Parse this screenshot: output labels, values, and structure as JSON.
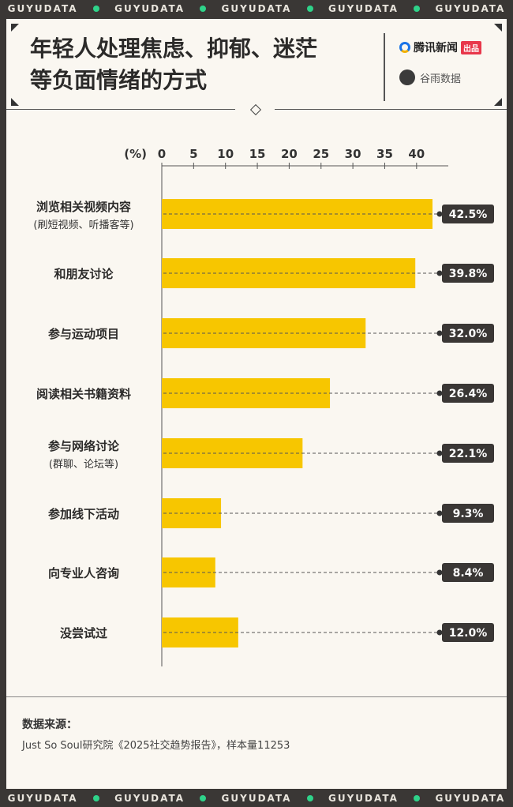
{
  "brand_band": [
    "GUYUDATA",
    "GUYUDATA",
    "GUYUDATA",
    "GUYUDATA",
    "GUYUDATA"
  ],
  "title_line1": "年轻人处理焦虑、抑郁、迷茫",
  "title_line2": "等负面情绪的方式",
  "brand": {
    "tencent": "腾讯新闻",
    "tencent_tag": "出品",
    "guyu": "谷雨数据"
  },
  "chart_data": {
    "type": "bar",
    "orientation": "horizontal",
    "unit_label": "(%)",
    "xlim": [
      0,
      42.5
    ],
    "ticks": [
      0,
      5,
      10,
      15,
      20,
      25,
      30,
      35,
      40
    ],
    "categories": [
      {
        "label": "浏览相关视频内容",
        "sub": "(刷短视频、听播客等)"
      },
      {
        "label": "和朋友讨论",
        "sub": ""
      },
      {
        "label": "参与运动项目",
        "sub": ""
      },
      {
        "label": "阅读相关书籍资料",
        "sub": ""
      },
      {
        "label": "参与网络讨论",
        "sub": "(群聊、论坛等)"
      },
      {
        "label": "参加线下活动",
        "sub": ""
      },
      {
        "label": "向专业人咨询",
        "sub": ""
      },
      {
        "label": "没尝试过",
        "sub": ""
      }
    ],
    "values": [
      42.5,
      39.8,
      32.0,
      26.4,
      22.1,
      9.3,
      8.4,
      12.0
    ],
    "value_labels": [
      "42.5%",
      "39.8%",
      "32.0%",
      "26.4%",
      "22.1%",
      "9.3%",
      "8.4%",
      "12.0%"
    ],
    "bar_color": "#f7c600",
    "badge_color": "#3a3735"
  },
  "source": {
    "label": "数据来源：",
    "text": "Just So Soul研究院《2025社交趋势报告》，样本量11253"
  }
}
